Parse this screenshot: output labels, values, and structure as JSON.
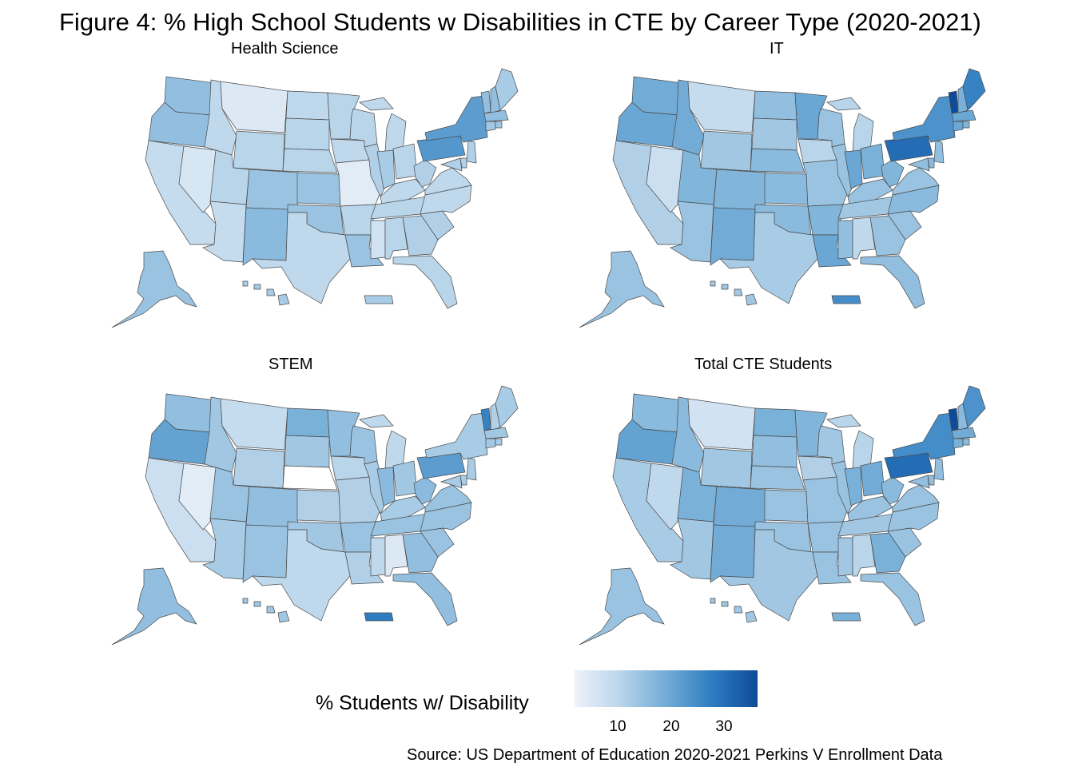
{
  "title": "Figure 4: % High School Students w Disabilities in CTE by Career Type (2020-2021)",
  "panels": [
    {
      "title": "Health  Science"
    },
    {
      "title": "IT"
    },
    {
      "title": "STEM"
    },
    {
      "title": "Total  CTE  Students"
    }
  ],
  "legend": {
    "title": "% Students w/ Disability",
    "ticks": [
      "10",
      "20",
      "30"
    ],
    "scale_min": 0,
    "scale_max": 36,
    "colors": [
      "#eef3fb",
      "#b9d5ea",
      "#72acd6",
      "#2f7dc1",
      "#0e4a99"
    ]
  },
  "source": "Source: US Department of Education 2020-2021 Perkins V Enrollment Data",
  "values": {
    "health": {
      "WA": 14,
      "OR": 14,
      "CA": 7,
      "NV": 4,
      "ID": 8,
      "MT": 3,
      "WY": 9,
      "UT": 9,
      "AZ": 7,
      "CO": 13,
      "NM": 15,
      "ND": 8,
      "SD": 9,
      "NE": 9,
      "KS": 13,
      "OK": 13,
      "TX": 8,
      "MN": 9,
      "IA": 8,
      "MO": 2,
      "AR": 9,
      "LA": 13,
      "WI": 9,
      "IL": 10,
      "MI": 8,
      "IN": 11,
      "OH": 9,
      "KY": 8,
      "TN": 9,
      "MS": 5,
      "AL": 9,
      "GA": 10,
      "FL": 9,
      "SC": 10,
      "NC": 8,
      "VA": 8,
      "WV": 10,
      "PA": 22,
      "NY": 21,
      "VT": 14,
      "NH": 14,
      "ME": 11,
      "MA": 14,
      "CT": 12,
      "RI": 12,
      "NJ": 10,
      "DE": 10,
      "MD": 10,
      "AK": 13,
      "HI": 11,
      "PR": 11
    },
    "it": {
      "WA": 18,
      "OR": 19,
      "CA": 10,
      "NV": 6,
      "ID": 18,
      "MT": 7,
      "WY": 12,
      "UT": 16,
      "AZ": 13,
      "CO": 16,
      "NM": 18,
      "ND": 14,
      "SD": 12,
      "NE": 15,
      "KS": 15,
      "OK": 15,
      "TX": 11,
      "MN": 19,
      "IA": 9,
      "MO": 13,
      "AR": 16,
      "LA": 19,
      "WI": 13,
      "IL": 13,
      "MI": 9,
      "IN": 19,
      "OH": 17,
      "KY": 13,
      "TN": 12,
      "MS": 14,
      "AL": 8,
      "GA": 13,
      "FL": 14,
      "SC": 13,
      "NC": 15,
      "VA": 13,
      "WV": 16,
      "PA": 30,
      "NY": 23,
      "VT": 36,
      "NH": 17,
      "ME": 26,
      "MA": 19,
      "CT": 19,
      "RI": 16,
      "NJ": 14,
      "DE": 15,
      "MD": 14,
      "AK": 13,
      "HI": 12,
      "PR": 24
    },
    "stem": {
      "WA": 14,
      "OR": 20,
      "CA": 6,
      "NV": 2,
      "ID": 12,
      "MT": 7,
      "WY": 10,
      "UT": 13,
      "AZ": 11,
      "CO": 14,
      "NM": 13,
      "ND": 17,
      "SD": 12,
      "NE": 0,
      "KS": 10,
      "OK": 12,
      "TX": 8,
      "MN": 14,
      "IA": 9,
      "MO": 10,
      "AR": 13,
      "LA": 10,
      "WI": 13,
      "IL": 11,
      "MI": 8,
      "IN": 15,
      "OH": 12,
      "KY": 11,
      "TN": 13,
      "MS": 8,
      "AL": 3,
      "GA": 14,
      "FL": 14,
      "SC": 13,
      "NC": 13,
      "VA": 13,
      "WV": 15,
      "PA": 21,
      "NY": 11,
      "VT": 26,
      "NH": 10,
      "ME": 11,
      "MA": 12,
      "CT": 12,
      "RI": 11,
      "NJ": 11,
      "DE": 11,
      "MD": 11,
      "AK": 14,
      "HI": 12,
      "PR": 27
    },
    "total": {
      "WA": 15,
      "OR": 20,
      "CA": 11,
      "NV": 8,
      "ID": 15,
      "MT": 5,
      "WY": 12,
      "UT": 17,
      "AZ": 12,
      "CO": 18,
      "NM": 18,
      "ND": 17,
      "SD": 14,
      "NE": 13,
      "KS": 13,
      "OK": 13,
      "TX": 12,
      "MN": 16,
      "IA": 10,
      "MO": 13,
      "AR": 13,
      "LA": 13,
      "WI": 12,
      "IL": 13,
      "MI": 9,
      "IN": 17,
      "OH": 18,
      "KY": 13,
      "TN": 12,
      "MS": 12,
      "AL": 9,
      "GA": 17,
      "FL": 13,
      "SC": 13,
      "NC": 13,
      "VA": 13,
      "WV": 15,
      "PA": 30,
      "NY": 24,
      "VT": 36,
      "NH": 15,
      "ME": 23,
      "MA": 18,
      "CT": 17,
      "RI": 15,
      "NJ": 14,
      "DE": 14,
      "MD": 14,
      "AK": 13,
      "HI": 12,
      "PR": 17
    }
  }
}
